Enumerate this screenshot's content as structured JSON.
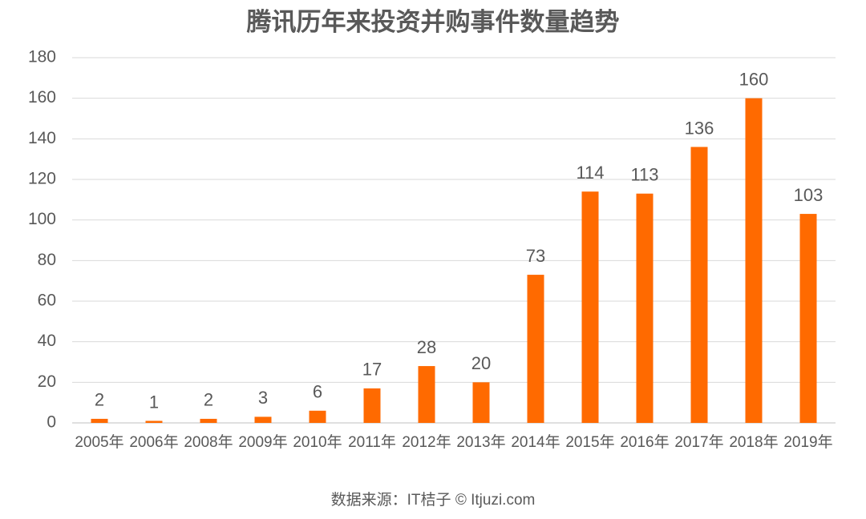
{
  "chart_data": {
    "type": "bar",
    "title": "腾讯历年来投资并购事件数量趋势",
    "categories": [
      "2005年",
      "2006年",
      "2008年",
      "2009年",
      "2010年",
      "2011年",
      "2012年",
      "2013年",
      "2014年",
      "2015年",
      "2016年",
      "2017年",
      "2018年",
      "2019年"
    ],
    "values": [
      2,
      1,
      2,
      3,
      6,
      17,
      28,
      20,
      73,
      114,
      113,
      136,
      160,
      103
    ],
    "color": "#ff6a00",
    "ylim": [
      0,
      180
    ],
    "yticks": [
      0,
      20,
      40,
      60,
      80,
      100,
      120,
      140,
      160,
      180
    ],
    "grid": true,
    "source": "数据来源：IT桔子 © Itjuzi.com"
  }
}
